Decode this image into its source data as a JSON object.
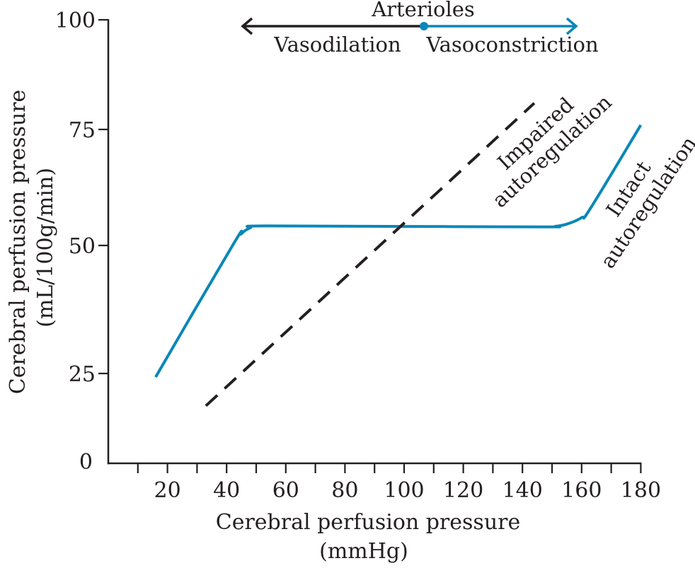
{
  "chart_data": {
    "type": "line",
    "title": "",
    "xlabel": [
      "Cerebral perfusion pressure",
      "(mmHg)"
    ],
    "ylabel": [
      "Cerebral perfusion pressure",
      "(mL/100g/min)"
    ],
    "xlim": [
      0,
      180
    ],
    "ylim": [
      0,
      100
    ],
    "x_ticks": [
      10,
      20,
      30,
      40,
      50,
      60,
      70,
      80,
      90,
      100,
      110,
      120,
      130,
      140,
      150,
      160,
      170,
      180
    ],
    "x_tick_labels": [
      "20",
      "40",
      "60",
      "80",
      "100",
      "120",
      "140",
      "160",
      "180"
    ],
    "x_tick_label_values": [
      20,
      40,
      60,
      80,
      100,
      120,
      140,
      160,
      180
    ],
    "y_ticks": [
      25,
      50,
      75,
      100
    ],
    "y_tick_labels": [
      "0",
      "25",
      "50",
      "75",
      "100"
    ],
    "y_tick_label_values": [
      0,
      25,
      50,
      75,
      100
    ],
    "grid": false,
    "series": [
      {
        "name": "Intact autoregulation",
        "label_lines": [
          "Intact",
          "autoregulation"
        ],
        "style": "solid",
        "color": "#0a87b8",
        "x": [
          16,
          42,
          45,
          48,
          52,
          100,
          148,
          151,
          155,
          160,
          163,
          180
        ],
        "y": [
          24,
          50,
          52.5,
          53.8,
          54.2,
          54.1,
          54,
          54.1,
          54.6,
          56,
          58,
          76
        ]
      },
      {
        "name": "Impaired autoregulation",
        "label_lines": [
          "Impaired",
          "autoregulation"
        ],
        "style": "dashed",
        "color": "#231f20",
        "x": [
          33,
          144
        ],
        "y": [
          16,
          81
        ]
      }
    ],
    "annotations": {
      "arterioles": {
        "title": "Arterioles",
        "left_label": "Vasodilation",
        "right_label": "Vasoconstriction",
        "left_color": "#231f20",
        "right_color": "#0a87b8"
      }
    }
  }
}
